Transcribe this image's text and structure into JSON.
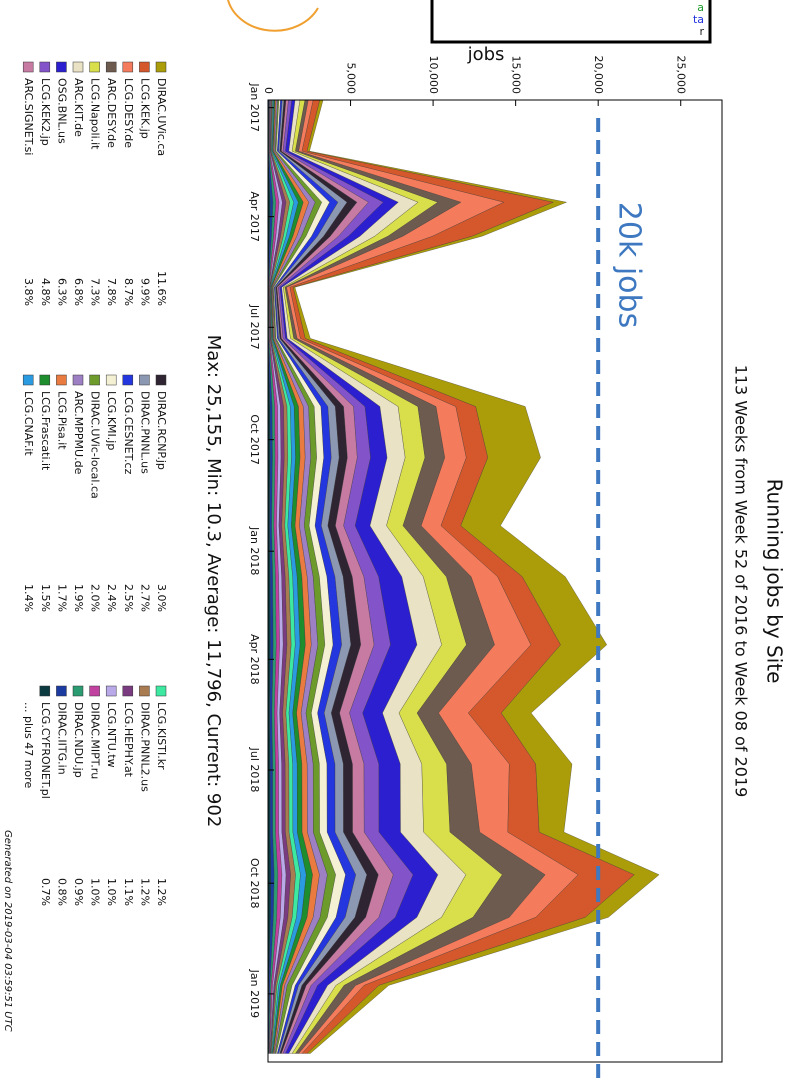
{
  "chart_data": {
    "type": "stacked_area",
    "title": "Running jobs by Site",
    "subtitle": "113 Weeks from Week 52 of 2016 to Week 08 of 2019",
    "ylabel": "jobs",
    "stats": "Max: 25,155, Min: 10.3, Average: 11,796, Current: 902",
    "footer": "Generated on 2019-03-04 03:59:51 UTC",
    "legend_more": "... plus 47 more",
    "annotation": {
      "text": "20k jobs",
      "value": 20000,
      "color": "#3d78c0"
    },
    "overlay_text": [
      "a",
      "ta",
      "r"
    ],
    "grid": false,
    "xlim": [
      0,
      113
    ],
    "xticks": [
      {
        "value": 0.9,
        "label": "Jan 2017"
      },
      {
        "value": 13.7,
        "label": "Apr 2017"
      },
      {
        "value": 26.7,
        "label": "Jul 2017"
      },
      {
        "value": 39.9,
        "label": "Oct 2017"
      },
      {
        "value": 53,
        "label": "Jan 2018"
      },
      {
        "value": 65.7,
        "label": "Apr 2018"
      },
      {
        "value": 78.7,
        "label": "Jul 2018"
      },
      {
        "value": 92,
        "label": "Oct 2018"
      },
      {
        "value": 105,
        "label": "Jan 2019"
      }
    ],
    "ylim": [
      0,
      27500
    ],
    "yticks": [
      0,
      {
        "value": 5000,
        "label": "5,000"
      },
      {
        "value": 10000,
        "label": "10,000"
      },
      {
        "value": 15000,
        "label": "15,000"
      },
      {
        "value": 20000,
        "label": "20,000"
      },
      {
        "value": 25000,
        "label": "25,000"
      }
    ],
    "x": [
      0,
      6,
      12,
      16,
      22,
      28,
      36,
      42,
      50,
      56,
      64,
      72,
      78,
      86,
      91,
      96,
      104,
      112
    ],
    "series": [
      {
        "name": "DIRAC.UVic.ca",
        "share": "11.6%",
        "color": "#ab9c0a",
        "values": [
          200,
          150,
          800,
          600,
          100,
          300,
          3000,
          3200,
          2400,
          2600,
          2800,
          1800,
          2200,
          1500,
          1500,
          1400,
          600,
          200
        ]
      },
      {
        "name": "LCG.KEK.jp",
        "share": "9.9%",
        "color": "#d4582c",
        "values": [
          400,
          300,
          3000,
          2400,
          200,
          300,
          1200,
          1300,
          1200,
          1500,
          1800,
          2000,
          1600,
          1900,
          3400,
          3000,
          900,
          300
        ]
      },
      {
        "name": "LCG.DESY.de",
        "share": "8.7%",
        "color": "#f47c5c",
        "values": [
          300,
          200,
          2600,
          1800,
          200,
          200,
          1200,
          1300,
          1200,
          1600,
          2200,
          1800,
          2300,
          1700,
          2000,
          1600,
          500,
          200
        ]
      },
      {
        "name": "ARC.DESY.de",
        "share": "7.8%",
        "color": "#6e5b4f",
        "values": [
          200,
          200,
          1400,
          900,
          100,
          200,
          1100,
          1200,
          1100,
          1500,
          1700,
          1300,
          1500,
          1800,
          2600,
          2200,
          700,
          200
        ]
      },
      {
        "name": "LCG.Napoli.it",
        "share": "7.3%",
        "color": "#d8df4a",
        "values": [
          300,
          200,
          1200,
          800,
          100,
          200,
          1200,
          1200,
          1000,
          1400,
          1500,
          1100,
          1500,
          1600,
          2200,
          1900,
          500,
          200
        ]
      },
      {
        "name": "ARC.KIT.de",
        "share": "6.8%",
        "color": "#e9e2c4",
        "values": [
          300,
          200,
          1200,
          900,
          100,
          200,
          1100,
          1100,
          1000,
          1300,
          1500,
          1000,
          1300,
          1400,
          1700,
          1500,
          500,
          200
        ]
      },
      {
        "name": "OSG.BNL.us",
        "share": "6.3%",
        "color": "#2b1fd0",
        "values": [
          200,
          200,
          900,
          700,
          100,
          100,
          900,
          1000,
          900,
          1400,
          1600,
          1200,
          1300,
          1300,
          1500,
          1300,
          600,
          200
        ]
      },
      {
        "name": "LCG.KEK2.jp",
        "share": "4.8%",
        "color": "#8353c9",
        "values": [
          200,
          150,
          900,
          600,
          100,
          150,
          700,
          800,
          700,
          900,
          1000,
          800,
          900,
          900,
          1200,
          1000,
          400,
          150
        ]
      },
      {
        "name": "ARC.SIGNET.si",
        "share": "3.8%",
        "color": "#c77ba2",
        "values": [
          150,
          100,
          700,
          500,
          80,
          100,
          600,
          600,
          500,
          700,
          800,
          600,
          700,
          700,
          900,
          800,
          300,
          100
        ]
      },
      {
        "name": "DIRAC.RCNP.jp",
        "share": "3.0%",
        "color": "#2f2431",
        "values": [
          120,
          90,
          600,
          400,
          60,
          90,
          500,
          500,
          450,
          550,
          600,
          500,
          550,
          550,
          700,
          650,
          250,
          90
        ]
      },
      {
        "name": "DIRAC.PNNL.us",
        "share": "2.7%",
        "color": "#8c97b1",
        "values": [
          110,
          80,
          550,
          380,
          55,
          80,
          450,
          480,
          400,
          500,
          560,
          430,
          510,
          510,
          670,
          590,
          210,
          80
        ]
      },
      {
        "name": "LCG.CESNET.cz",
        "share": "2.5%",
        "color": "#2436de",
        "values": [
          100,
          80,
          500,
          350,
          50,
          80,
          420,
          450,
          380,
          480,
          520,
          400,
          480,
          480,
          620,
          550,
          200,
          80
        ]
      },
      {
        "name": "LCG.KMI.jp",
        "share": "2.4%",
        "color": "#f3f0d3",
        "values": [
          100,
          70,
          480,
          340,
          50,
          70,
          410,
          430,
          360,
          460,
          500,
          380,
          460,
          460,
          600,
          530,
          190,
          70
        ]
      },
      {
        "name": "DIRAC.UVic-local.ca",
        "share": "2.0%",
        "color": "#6d9b2b",
        "values": [
          80,
          60,
          400,
          280,
          40,
          60,
          340,
          360,
          300,
          380,
          420,
          320,
          380,
          380,
          500,
          440,
          300,
          60
        ]
      },
      {
        "name": "ARC.MPPMU.de",
        "share": "1.9%",
        "color": "#9d80c3",
        "values": [
          80,
          60,
          380,
          270,
          40,
          60,
          320,
          340,
          290,
          360,
          400,
          300,
          360,
          360,
          480,
          420,
          150,
          60
        ]
      },
      {
        "name": "LCG.Pisa.it",
        "share": "1.7%",
        "color": "#e97b41",
        "values": [
          70,
          50,
          340,
          240,
          35,
          50,
          290,
          310,
          260,
          320,
          360,
          270,
          320,
          320,
          420,
          370,
          140,
          50
        ]
      },
      {
        "name": "LCG.Frascati.it",
        "share": "1.5%",
        "color": "#1d8d2d",
        "values": [
          60,
          45,
          300,
          210,
          30,
          45,
          260,
          270,
          230,
          290,
          320,
          240,
          290,
          290,
          380,
          330,
          120,
          45
        ]
      },
      {
        "name": "LCG.CNAF.it",
        "share": "1.4%",
        "color": "#2b9be1",
        "values": [
          55,
          40,
          280,
          200,
          28,
          40,
          240,
          250,
          210,
          270,
          290,
          220,
          270,
          270,
          350,
          310,
          110,
          40
        ]
      },
      {
        "name": "LCG.KISTI.kr",
        "share": "1.2%",
        "color": "#3de8a1",
        "values": [
          50,
          35,
          240,
          170,
          24,
          35,
          200,
          220,
          180,
          230,
          250,
          190,
          230,
          230,
          300,
          260,
          100,
          35
        ]
      },
      {
        "name": "DIRAC.PNNL2.us",
        "share": "1.2%",
        "color": "#a97b51",
        "values": [
          45,
          36,
          230,
          165,
          25,
          36,
          205,
          215,
          185,
          225,
          255,
          195,
          225,
          225,
          295,
          265,
          95,
          36
        ]
      },
      {
        "name": "LCG.HEPHY.at",
        "share": "1.1%",
        "color": "#7b3b81",
        "values": [
          45,
          33,
          220,
          150,
          22,
          33,
          190,
          200,
          170,
          210,
          230,
          180,
          210,
          210,
          280,
          240,
          90,
          33
        ]
      },
      {
        "name": "LCG.NTU.tw",
        "share": "1.0%",
        "color": "#b9a9e9",
        "values": [
          40,
          30,
          200,
          140,
          20,
          30,
          170,
          180,
          150,
          190,
          210,
          160,
          190,
          190,
          250,
          220,
          80,
          30
        ]
      },
      {
        "name": "DIRAC.MIPT.ru",
        "share": "1.0%",
        "color": "#c141a1",
        "values": [
          38,
          30,
          190,
          140,
          20,
          30,
          175,
          175,
          155,
          185,
          205,
          165,
          185,
          195,
          245,
          215,
          85,
          30
        ]
      },
      {
        "name": "DIRAC.NDU.jp",
        "share": "0.9%",
        "color": "#2b9b71",
        "values": [
          36,
          27,
          180,
          126,
          18,
          27,
          153,
          162,
          135,
          171,
          189,
          144,
          171,
          171,
          225,
          198,
          72,
          27
        ]
      },
      {
        "name": "DIRAC.IITG.in",
        "share": "0.8%",
        "color": "#1b3ba1",
        "values": [
          32,
          24,
          160,
          112,
          16,
          24,
          136,
          144,
          120,
          152,
          168,
          128,
          152,
          152,
          200,
          176,
          64,
          24
        ]
      },
      {
        "name": "LCG.CYFRONET.pl",
        "share": "0.7%",
        "color": "#0b3b41",
        "values": [
          28,
          21,
          140,
          98,
          14,
          21,
          119,
          126,
          105,
          133,
          147,
          112,
          133,
          133,
          175,
          154,
          56,
          21
        ]
      }
    ]
  }
}
